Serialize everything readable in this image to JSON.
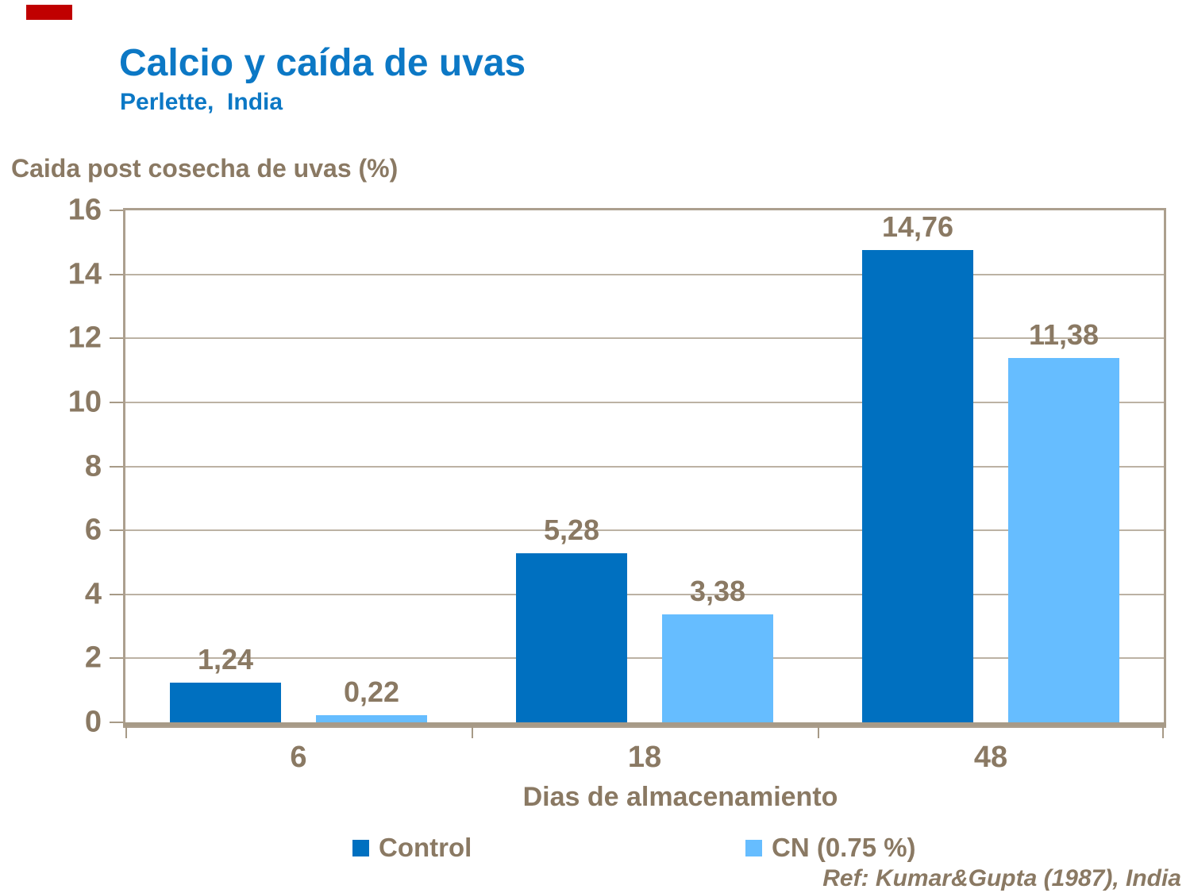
{
  "header": {
    "title": "Calcio y caída de uvas",
    "subtitle": "Perlette,  India"
  },
  "chart_data": {
    "type": "bar",
    "title": "Calcio y caída de uvas",
    "subtitle": "Perlette, India",
    "ylabel": "Caida post cosecha de uvas (%)",
    "xlabel": "Dias de almacenamiento",
    "categories": [
      "6",
      "18",
      "48"
    ],
    "series": [
      {
        "name": "Control",
        "color": "#0070C0",
        "values": [
          1.24,
          5.28,
          14.76
        ],
        "value_labels": [
          "1,24",
          "5,28",
          "14,76"
        ]
      },
      {
        "name": "CN (0.75 %)",
        "color": "#66BDFF",
        "values": [
          0.22,
          3.38,
          11.38
        ],
        "value_labels": [
          "0,22",
          "3,38",
          "11,38"
        ]
      }
    ],
    "ylim": [
      0,
      16
    ],
    "yticks": [
      0,
      2,
      4,
      6,
      8,
      10,
      12,
      14,
      16
    ],
    "grid": true,
    "legend_position": "bottom",
    "reference": "Ref: Kumar&Gupta (1987), India"
  },
  "colors": {
    "title_blue": "#0C78C5",
    "series_dark_blue": "#0070C0",
    "series_light_blue": "#66BDFF",
    "text_taupe": "#8A7963",
    "axis_line": "#A79A87",
    "grid_line": "#BCB2A4",
    "plot_border": "#AC9F8E",
    "corner_mark_red": "#C00000"
  }
}
